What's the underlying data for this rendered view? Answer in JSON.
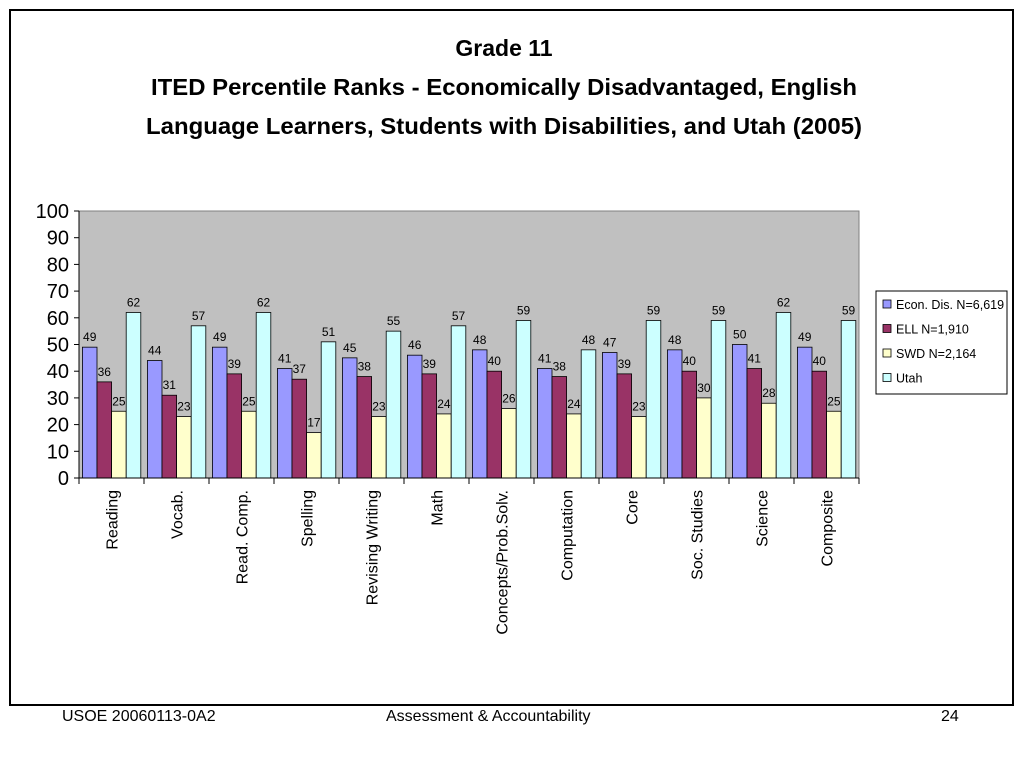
{
  "chart_data": {
    "type": "bar",
    "title": [
      "Grade 11",
      "ITED Percentile Ranks - Economically Disadvantaged, English",
      "Language Learners, Students with Disabilities, and Utah (2005)"
    ],
    "categories": [
      "Reading",
      "Vocab.",
      "Read. Comp.",
      "Spelling",
      "Revising Writing",
      "Math",
      "Concepts/Prob.Solv.",
      "Computation",
      "Core",
      "Soc. Studies",
      "Science",
      "Composite"
    ],
    "series": [
      {
        "name": "Econ. Dis. N=6,619",
        "color": "#9999ff",
        "values": [
          49,
          44,
          49,
          41,
          45,
          46,
          48,
          41,
          47,
          48,
          50,
          49
        ]
      },
      {
        "name": "ELL N=1,910",
        "color": "#993366",
        "values": [
          36,
          31,
          39,
          37,
          38,
          39,
          40,
          38,
          39,
          40,
          41,
          40
        ]
      },
      {
        "name": "SWD N=2,164",
        "color": "#ffffcc",
        "values": [
          25,
          23,
          25,
          17,
          23,
          24,
          26,
          24,
          23,
          30,
          28,
          25
        ]
      },
      {
        "name": "Utah",
        "color": "#ccffff",
        "values": [
          62,
          57,
          62,
          51,
          55,
          57,
          59,
          48,
          59,
          59,
          62,
          59
        ]
      }
    ],
    "ylim": [
      0,
      100
    ],
    "yticks": [
      0,
      10,
      20,
      30,
      40,
      50,
      60,
      70,
      80,
      90,
      100
    ],
    "plot_background": "#c0c0c0",
    "grid": false,
    "legend_position": "right",
    "data_labels": true
  },
  "footer": {
    "left": "USOE 20060113-0A2",
    "center": "Assessment & Accountability",
    "right": "24"
  }
}
